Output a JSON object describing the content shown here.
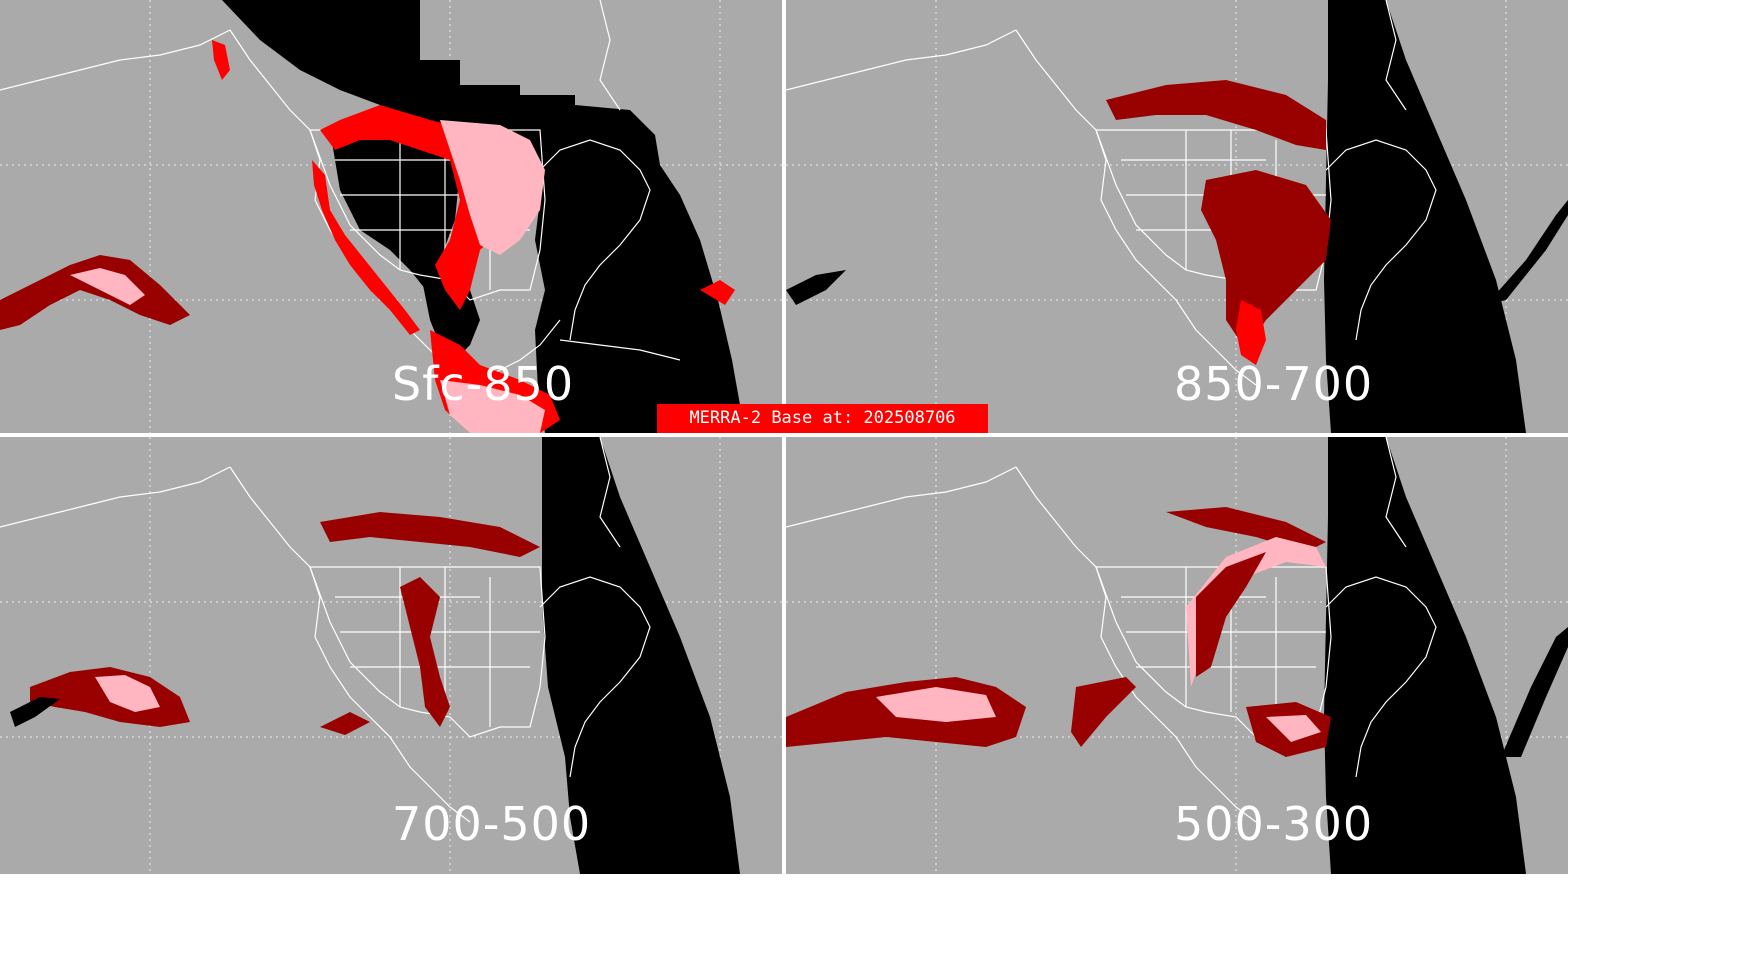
{
  "title": "MERRA-2 Base at: 202508706",
  "colors": {
    "background": "#aaaaaa",
    "night": "#000000",
    "outline": "#ffffff",
    "dark_red": "#990000",
    "red": "#ff0000",
    "pink": "#ffb6c1",
    "banner": "#ff0000"
  },
  "panels": [
    {
      "id": "sfc-850",
      "label": "Sfc-850"
    },
    {
      "id": "850-700",
      "label": "850-700"
    },
    {
      "id": "700-500",
      "label": "700-500"
    },
    {
      "id": "500-300",
      "label": "500-300"
    }
  ]
}
